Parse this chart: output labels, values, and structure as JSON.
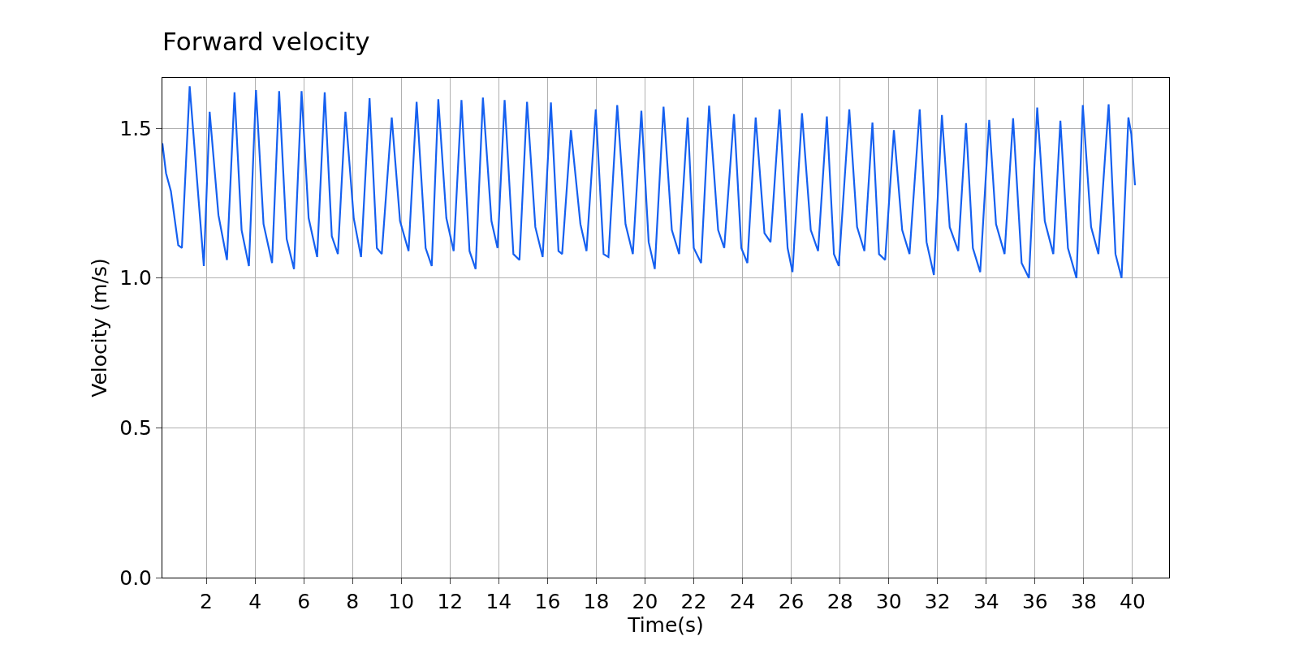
{
  "chart_data": {
    "type": "line",
    "title": "Forward velocity",
    "xlabel": "Time(s)",
    "ylabel": "Velocity (m/s)",
    "x": [
      0.2,
      0.35,
      0.55,
      0.7,
      0.85,
      1.0,
      1.32,
      1.9,
      2.14,
      2.5,
      2.85,
      3.16,
      3.45,
      3.75,
      4.04,
      4.35,
      4.7,
      4.99,
      5.3,
      5.6,
      5.91,
      6.2,
      6.55,
      6.86,
      7.15,
      7.4,
      7.71,
      8.05,
      8.35,
      8.7,
      9.0,
      9.2,
      9.61,
      9.95,
      10.3,
      10.63,
      11.0,
      11.25,
      11.52,
      11.85,
      12.15,
      12.47,
      12.8,
      13.05,
      13.35,
      13.7,
      13.95,
      14.24,
      14.6,
      14.85,
      15.16,
      15.5,
      15.8,
      16.14,
      16.45,
      16.6,
      16.96,
      17.35,
      17.6,
      17.98,
      18.3,
      18.5,
      18.86,
      19.2,
      19.5,
      19.85,
      20.15,
      20.4,
      20.76,
      21.1,
      21.4,
      21.75,
      22.0,
      22.3,
      22.63,
      23.0,
      23.25,
      23.65,
      23.95,
      24.2,
      24.54,
      24.9,
      25.15,
      25.52,
      25.85,
      26.05,
      26.44,
      26.8,
      27.1,
      27.46,
      27.75,
      27.95,
      28.38,
      28.7,
      29.0,
      29.33,
      29.6,
      29.85,
      30.21,
      30.55,
      30.85,
      31.27,
      31.55,
      31.85,
      32.18,
      32.5,
      32.85,
      33.17,
      33.45,
      33.75,
      34.12,
      34.4,
      34.75,
      35.1,
      35.45,
      35.75,
      36.09,
      36.4,
      36.75,
      37.04,
      37.35,
      37.7,
      37.96,
      38.3,
      38.6,
      39.02,
      39.3,
      39.55,
      39.83,
      39.95,
      40.1
    ],
    "series": [
      {
        "color": "#1560f0",
        "values": [
          1.45,
          1.35,
          1.29,
          1.2,
          1.11,
          1.1,
          1.64,
          1.04,
          1.555,
          1.21,
          1.06,
          1.62,
          1.16,
          1.04,
          1.627,
          1.18,
          1.05,
          1.624,
          1.13,
          1.03,
          1.624,
          1.2,
          1.07,
          1.62,
          1.14,
          1.08,
          1.555,
          1.2,
          1.07,
          1.6,
          1.1,
          1.08,
          1.536,
          1.19,
          1.09,
          1.588,
          1.1,
          1.04,
          1.597,
          1.2,
          1.09,
          1.594,
          1.09,
          1.03,
          1.602,
          1.19,
          1.1,
          1.594,
          1.08,
          1.06,
          1.588,
          1.17,
          1.07,
          1.586,
          1.09,
          1.08,
          1.494,
          1.18,
          1.09,
          1.563,
          1.08,
          1.07,
          1.577,
          1.18,
          1.08,
          1.558,
          1.12,
          1.03,
          1.572,
          1.16,
          1.08,
          1.536,
          1.1,
          1.05,
          1.575,
          1.16,
          1.1,
          1.547,
          1.1,
          1.05,
          1.536,
          1.15,
          1.12,
          1.563,
          1.1,
          1.02,
          1.55,
          1.16,
          1.09,
          1.539,
          1.08,
          1.04,
          1.563,
          1.17,
          1.09,
          1.519,
          1.08,
          1.06,
          1.494,
          1.16,
          1.08,
          1.563,
          1.12,
          1.01,
          1.544,
          1.17,
          1.09,
          1.517,
          1.1,
          1.02,
          1.528,
          1.18,
          1.08,
          1.533,
          1.05,
          1.0,
          1.569,
          1.19,
          1.08,
          1.525,
          1.1,
          1.0,
          1.577,
          1.17,
          1.08,
          1.58,
          1.08,
          1.0,
          1.536,
          1.48,
          1.31
        ]
      }
    ],
    "xlim": [
      0.2,
      41.5
    ],
    "xticks": [
      2,
      4,
      6,
      8,
      10,
      12,
      14,
      16,
      18,
      20,
      22,
      24,
      26,
      28,
      30,
      32,
      34,
      36,
      38,
      40
    ],
    "ylim": [
      0,
      1.668
    ],
    "yticks": [
      {
        "value": 0,
        "label": "0.0"
      },
      0.5,
      {
        "value": 1,
        "label": "1.0"
      },
      1.5
    ],
    "grid": true,
    "legend": false,
    "marker": "none",
    "line_style": "solid"
  }
}
